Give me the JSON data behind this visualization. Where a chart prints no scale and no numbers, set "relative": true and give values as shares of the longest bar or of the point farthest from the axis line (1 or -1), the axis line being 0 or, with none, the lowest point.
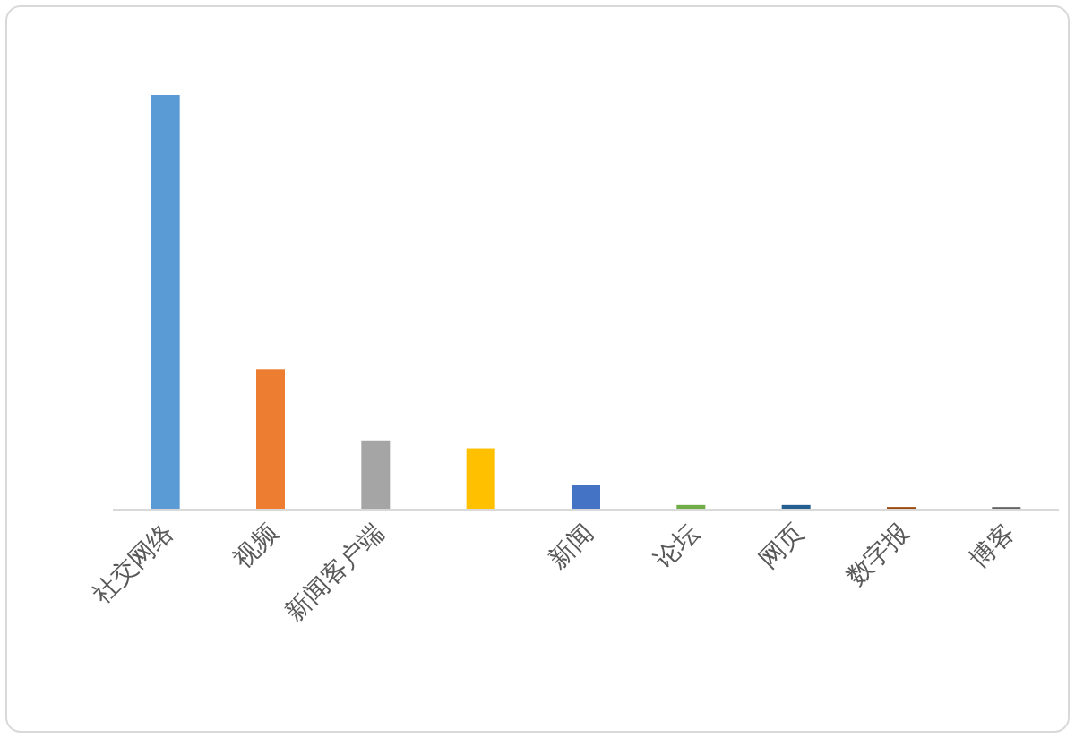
{
  "chart_data": {
    "type": "bar",
    "relative": true,
    "categories": [
      "社交网络",
      "视频",
      "新闻客户端",
      null,
      "新闻",
      "论坛",
      "网页",
      "数字报",
      "博客"
    ],
    "values": [
      1,
      0.337,
      0.165,
      0.146,
      0.058,
      0.009,
      0.009,
      0.004,
      0.004
    ],
    "colors": [
      "#5b9bd5",
      "#ed7d31",
      "#a5a5a5",
      "#ffc000",
      "#4472c4",
      "#70ad47",
      "#255e91",
      "#9e480e",
      "#636363"
    ]
  }
}
